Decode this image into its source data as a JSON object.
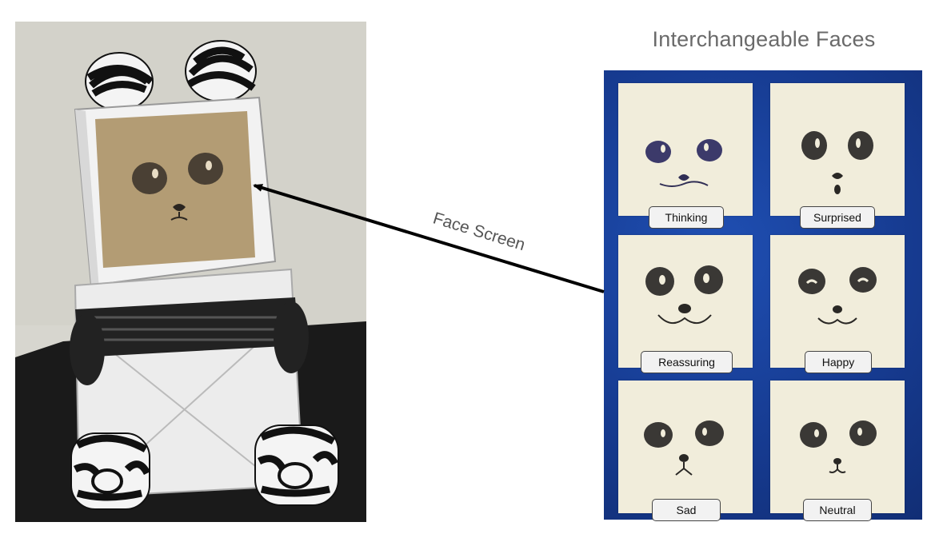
{
  "title": "Interchangeable Faces",
  "arrow_label": "Face Screen",
  "faces": [
    {
      "label": "Thinking",
      "expression": "thinking"
    },
    {
      "label": "Surprised",
      "expression": "surprised"
    },
    {
      "label": "Reassuring",
      "expression": "reassuring"
    },
    {
      "label": "Happy",
      "expression": "happy"
    },
    {
      "label": "Sad",
      "expression": "sad"
    },
    {
      "label": "Neutral",
      "expression": "neutral"
    }
  ],
  "colors": {
    "board": "#173f9a",
    "note": "#f1eddb",
    "arrow": "#000000",
    "title": "#6a6a6a"
  }
}
